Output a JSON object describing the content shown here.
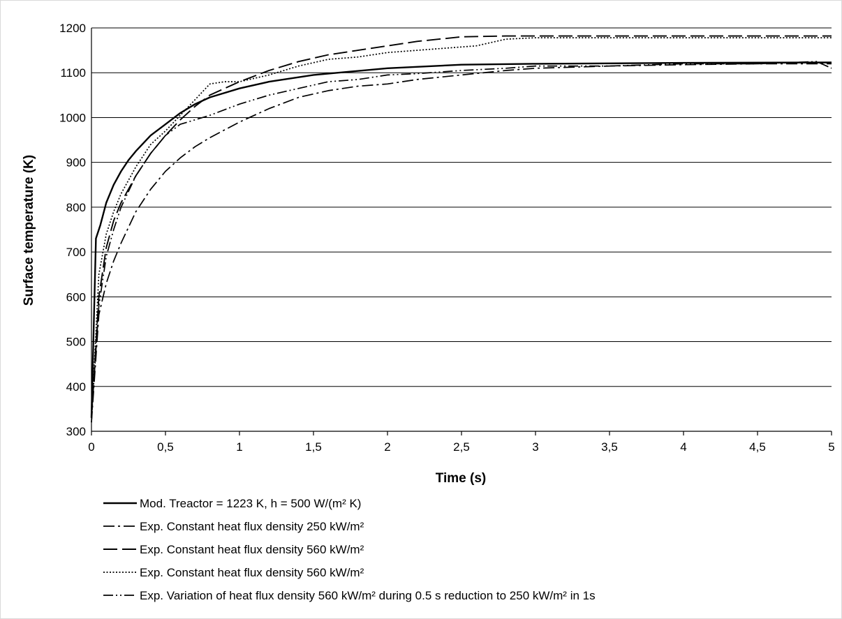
{
  "chart_data": {
    "type": "line",
    "title": "",
    "xlabel": "Time (s)",
    "ylabel": "Surface temperature (K)",
    "xlim": [
      0,
      5
    ],
    "ylim": [
      300,
      1200
    ],
    "x_ticks": [
      0,
      0.5,
      1,
      1.5,
      2,
      2.5,
      3,
      3.5,
      4,
      4.5,
      5
    ],
    "x_tick_labels": [
      "0",
      "0,5",
      "1",
      "1,5",
      "2",
      "2,5",
      "3",
      "3,5",
      "4",
      "4,5",
      "5"
    ],
    "y_ticks": [
      300,
      400,
      500,
      600,
      700,
      800,
      900,
      1000,
      1100,
      1200
    ],
    "y_tick_labels": [
      "300",
      "400",
      "500",
      "600",
      "700",
      "800",
      "900",
      "1000",
      "1100",
      "1200"
    ],
    "grid": "horizontal",
    "legend_position": "bottom",
    "series": [
      {
        "name": "Mod. Treactor = 1223 K, h = 500 W/(m² K)",
        "dash": "solid",
        "x": [
          0,
          0.03,
          0.06,
          0.1,
          0.15,
          0.2,
          0.25,
          0.3,
          0.4,
          0.5,
          0.6,
          0.7,
          0.8,
          1.0,
          1.2,
          1.5,
          2.0,
          2.5,
          3.0,
          4.0,
          5.0
        ],
        "y": [
          330,
          730,
          760,
          810,
          850,
          880,
          905,
          925,
          960,
          985,
          1010,
          1030,
          1045,
          1065,
          1080,
          1095,
          1110,
          1118,
          1120,
          1122,
          1123
        ]
      },
      {
        "name": "Exp. Constant heat flux density 250 kW/m²",
        "dash": "dashdot",
        "x": [
          0,
          0.05,
          0.1,
          0.15,
          0.2,
          0.3,
          0.4,
          0.5,
          0.6,
          0.7,
          0.8,
          1.0,
          1.2,
          1.4,
          1.6,
          1.8,
          2.0,
          2.2,
          2.5,
          2.8,
          3.0,
          3.5,
          4.0,
          4.5,
          5.0
        ],
        "y": [
          320,
          560,
          630,
          680,
          720,
          790,
          840,
          880,
          910,
          935,
          955,
          990,
          1020,
          1045,
          1060,
          1070,
          1075,
          1085,
          1095,
          1105,
          1110,
          1115,
          1118,
          1120,
          1120
        ]
      },
      {
        "name": "Exp. Constant heat flux density 560 kW/m²",
        "dash": "longdash",
        "x": [
          0,
          0.05,
          0.1,
          0.15,
          0.2,
          0.3,
          0.4,
          0.5,
          0.6,
          0.7,
          0.8,
          0.9,
          1.0,
          1.2,
          1.4,
          1.6,
          1.8,
          2.0,
          2.2,
          2.5,
          2.8,
          3.0,
          4.0,
          5.0
        ],
        "y": [
          330,
          600,
          710,
          770,
          810,
          870,
          920,
          960,
          995,
          1025,
          1050,
          1065,
          1080,
          1105,
          1125,
          1140,
          1150,
          1160,
          1170,
          1180,
          1182,
          1182,
          1182,
          1182
        ]
      },
      {
        "name": "Exp. Constant heat flux density 560 kW/m²",
        "dash": "dotted",
        "x": [
          0,
          0.05,
          0.1,
          0.15,
          0.2,
          0.3,
          0.4,
          0.5,
          0.6,
          0.7,
          0.8,
          0.9,
          1.0,
          1.2,
          1.4,
          1.6,
          1.8,
          2.0,
          2.2,
          2.4,
          2.6,
          2.8,
          3.0,
          4.0,
          5.0
        ],
        "y": [
          320,
          650,
          740,
          790,
          830,
          890,
          940,
          970,
          1005,
          1040,
          1075,
          1080,
          1080,
          1095,
          1115,
          1130,
          1135,
          1145,
          1150,
          1155,
          1160,
          1175,
          1178,
          1178,
          1178
        ]
      },
      {
        "name": "Exp. Variation of heat flux density 560 kW/m² during 0.5 s reduction to 250 kW/m² in 1s",
        "dash": "dashdotdot",
        "x": [
          0,
          0.05,
          0.1,
          0.15,
          0.2,
          0.3,
          0.4,
          0.5,
          0.6,
          0.7,
          0.8,
          1.0,
          1.2,
          1.4,
          1.6,
          1.8,
          2.0,
          2.2,
          2.5,
          2.8,
          3.0,
          3.5,
          4.0,
          4.5,
          4.9,
          5.0
        ],
        "y": [
          330,
          580,
          690,
          750,
          800,
          870,
          920,
          960,
          985,
          995,
          1005,
          1030,
          1050,
          1065,
          1080,
          1085,
          1095,
          1098,
          1105,
          1110,
          1115,
          1115,
          1120,
          1120,
          1125,
          1110
        ]
      }
    ]
  }
}
